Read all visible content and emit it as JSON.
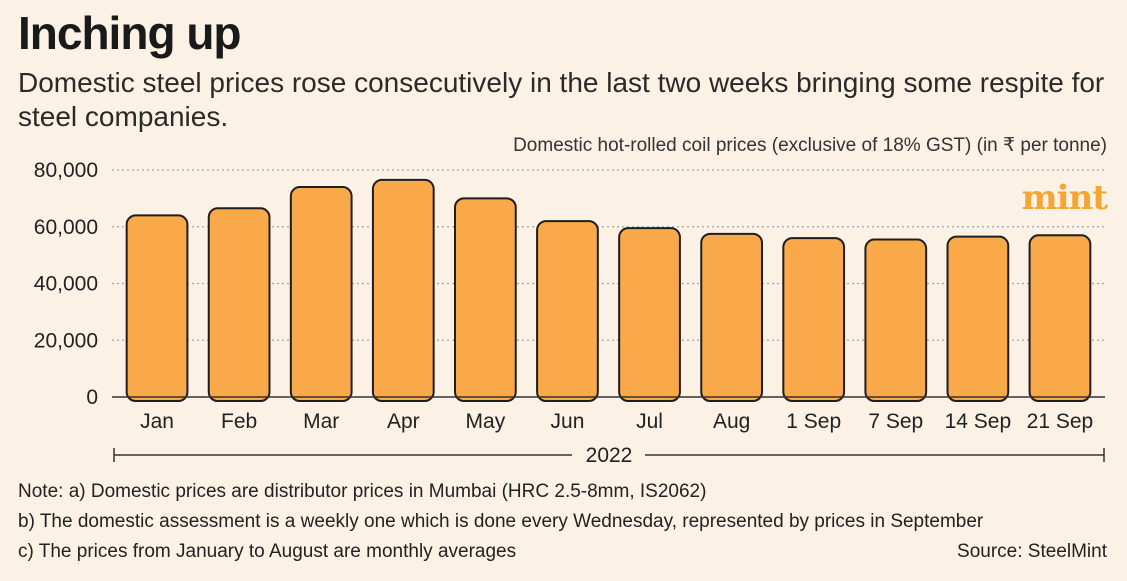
{
  "title": "Inching up",
  "subtitle": "Domestic steel prices rose consecutively in the last two weeks bringing some respite for steel companies.",
  "brand": "mint",
  "notes": [
    "Note: a) Domestic prices are distributor prices in Mumbai (HRC 2.5-8mm, IS2062)",
    "b) The domestic assessment is a weekly one which is done every Wednesday, represented by prices in September",
    "c) The prices from January to August are monthly averages"
  ],
  "source": "Source: SteelMint",
  "colors": {
    "bar": "#f9a94a",
    "bar_stroke": "#1e1e1e",
    "grid": "#9aa3c8",
    "axis": "#333333",
    "background": "#fcf1e5",
    "brand": "#f5a530"
  },
  "chart_data": {
    "type": "bar",
    "title": "Domestic hot-rolled coil prices (exclusive of 18% GST) (in ₹ per tonne)",
    "xlabel": "2022",
    "ylabel": "",
    "categories": [
      "Jan",
      "Feb",
      "Mar",
      "Apr",
      "May",
      "Jun",
      "Jul",
      "Aug",
      "1 Sep",
      "7 Sep",
      "14 Sep",
      "21 Sep"
    ],
    "values": [
      64000,
      66500,
      74000,
      76500,
      70000,
      62000,
      59500,
      57500,
      56000,
      55500,
      56500,
      57000
    ],
    "ylim": [
      0,
      80000
    ],
    "yticks": [
      0,
      20000,
      40000,
      60000,
      80000
    ],
    "ytick_labels": [
      "0",
      "20,000",
      "40,000",
      "60,000",
      "80,000"
    ],
    "grid": true
  }
}
